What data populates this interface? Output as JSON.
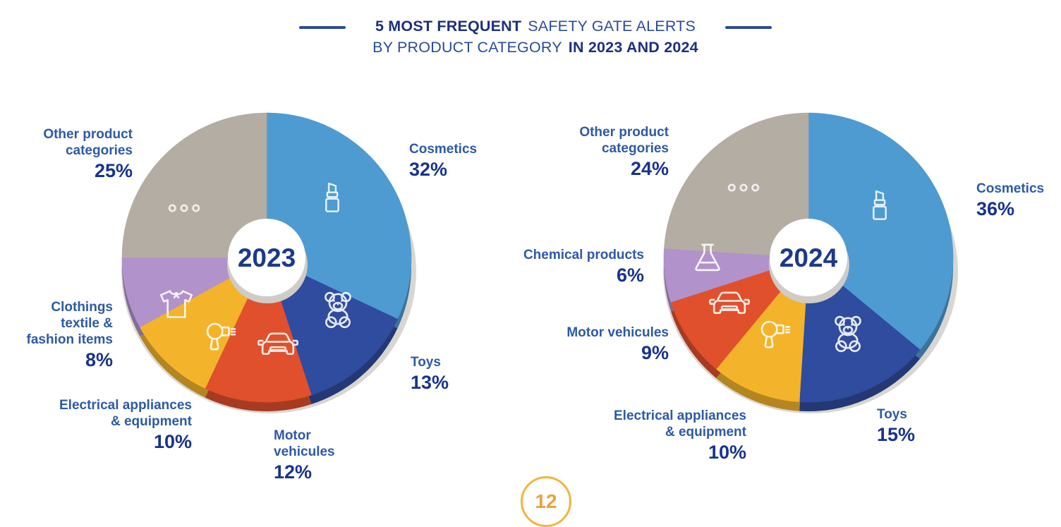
{
  "title": {
    "line1_bold": "5 MOST FREQUENT",
    "line1_regular": "SAFETY GATE ALERTS",
    "line2_regular": "BY PRODUCT CATEGORY",
    "line2_bold": "IN 2023 AND 2024"
  },
  "page_badge": {
    "number": "12"
  },
  "colors": {
    "cosmetics_blue": "#4E9BD2",
    "toys_navy": "#2F4C9E",
    "motor_red": "#E0502C",
    "electrical_yellow": "#F3B42B",
    "purple": "#B192CA",
    "other_gray": "#B4ADA4",
    "plate_gray": "#D9D6D1",
    "label_blue": "#2C5AA6",
    "pct_navy": "#17338D",
    "title_navy": "#1D3080",
    "badge_yellow": "#F2B53B"
  },
  "chart_data": [
    {
      "type": "pie",
      "title": "2023",
      "center_label": "2023",
      "units": "%",
      "start_angle_deg": 0,
      "direction": "clockwise",
      "slices": [
        {
          "label": "Cosmetics",
          "value": 32,
          "pct": "32%",
          "color": "#4E9BD2",
          "icon": "lipstick-icon"
        },
        {
          "label": "Toys",
          "value": 13,
          "pct": "13%",
          "color": "#2F4C9E",
          "icon": "teddy-bear-icon"
        },
        {
          "label": "Motor vehicules",
          "value": 12,
          "pct": "12%",
          "color": "#E0502C",
          "icon": "car-icon"
        },
        {
          "label": "Electrical appliances & equipment",
          "value": 10,
          "pct": "10%",
          "color": "#F3B42B",
          "icon": "hair-dryer-icon"
        },
        {
          "label": "Clothings textile & fashion items",
          "value": 8,
          "pct": "8%",
          "color": "#B192CA",
          "icon": "tshirt-icon"
        },
        {
          "label": "Other product categories",
          "value": 25,
          "pct": "25%",
          "color": "#B4ADA4",
          "icon": "three-dots-icon"
        }
      ]
    },
    {
      "type": "pie",
      "title": "2024",
      "center_label": "2024",
      "units": "%",
      "start_angle_deg": 0,
      "direction": "clockwise",
      "slices": [
        {
          "label": "Cosmetics",
          "value": 36,
          "pct": "36%",
          "color": "#4E9BD2",
          "icon": "lipstick-icon"
        },
        {
          "label": "Toys",
          "value": 15,
          "pct": "15%",
          "color": "#2F4C9E",
          "icon": "teddy-bear-icon"
        },
        {
          "label": "Electrical appliances & equipment",
          "value": 10,
          "pct": "10%",
          "color": "#F3B42B",
          "icon": "hair-dryer-icon"
        },
        {
          "label": "Motor vehicules",
          "value": 9,
          "pct": "9%",
          "color": "#E0502C",
          "icon": "car-icon"
        },
        {
          "label": "Chemical products",
          "value": 6,
          "pct": "6%",
          "color": "#B192CA",
          "icon": "flask-icon"
        },
        {
          "label": "Other product categories",
          "value": 24,
          "pct": "24%",
          "color": "#B4ADA4",
          "icon": "three-dots-icon"
        }
      ]
    }
  ]
}
